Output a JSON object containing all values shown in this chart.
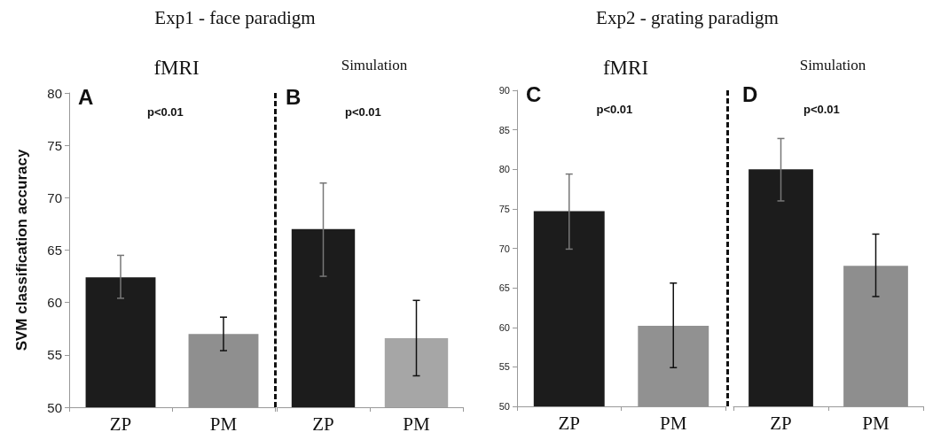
{
  "chart_data": [
    {
      "type": "bar",
      "title": "Exp1 - face paradigm",
      "subtitle": "fMRI",
      "ylabel": "SVM classification accuracy",
      "categories": [
        "ZP",
        "PM"
      ],
      "values": [
        62.4,
        57.0
      ],
      "colors": [
        "#1c1c1c",
        "#8f8f8f"
      ],
      "errors": [
        [
          60.4,
          64.5
        ],
        [
          55.4,
          58.6
        ]
      ],
      "ylim": [
        50,
        80
      ],
      "yticks": [
        50,
        55,
        60,
        65,
        70,
        75,
        80
      ],
      "annotations": [
        "A",
        "p<0.01"
      ],
      "grid": false
    },
    {
      "type": "bar",
      "subtitle": "Simulation",
      "categories": [
        "ZP",
        "PM"
      ],
      "values": [
        67.0,
        56.6
      ],
      "colors": [
        "#1c1c1c",
        "#a6a6a6"
      ],
      "errors": [
        [
          62.5,
          71.4
        ],
        [
          53.0,
          60.2
        ]
      ],
      "ylim": [
        50,
        80
      ],
      "tick_labels": "x",
      "annotations": [
        "B",
        "p<0.01"
      ],
      "grid": false
    },
    {
      "type": "bar",
      "title": "Exp2 - grating paradigm",
      "subtitle": "fMRI",
      "categories": [
        "ZP",
        "PM"
      ],
      "values": [
        74.7,
        60.2
      ],
      "colors": [
        "#1c1c1c",
        "#919191"
      ],
      "errors": [
        [
          69.9,
          79.4
        ],
        [
          54.9,
          65.6
        ]
      ],
      "ylim": [
        50,
        90
      ],
      "yticks": [
        50,
        55,
        60,
        65,
        70,
        75,
        80,
        85,
        90
      ],
      "annotations": [
        "C",
        "p<0.01"
      ],
      "grid": false
    },
    {
      "type": "bar",
      "subtitle": "Simulation",
      "categories": [
        "ZP",
        "PM"
      ],
      "values": [
        80.0,
        67.8
      ],
      "colors": [
        "#1c1c1c",
        "#8e8e8e"
      ],
      "errors": [
        [
          76.0,
          83.9
        ],
        [
          63.9,
          71.8
        ]
      ],
      "ylim": [
        50,
        90
      ],
      "tick_labels": "x",
      "annotations": [
        "D",
        "p<0.01"
      ],
      "grid": false
    }
  ]
}
